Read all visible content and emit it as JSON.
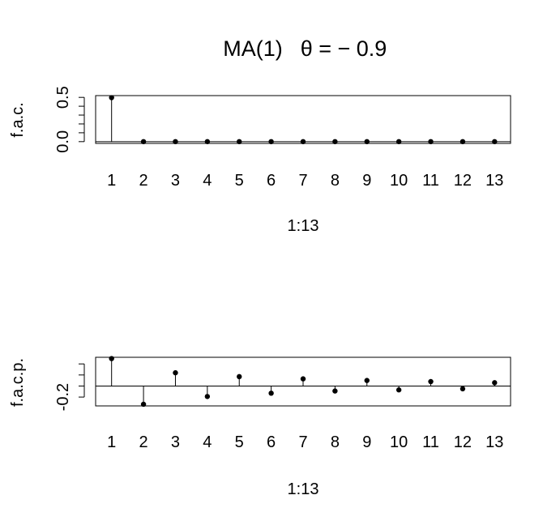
{
  "figure": {
    "title_main": "MA(1)",
    "title_param": "θ = − 0.9"
  },
  "chart_data": [
    {
      "type": "scatter",
      "style": "stem",
      "title": "MA(1)  θ = − 0.9",
      "xlabel": "1:13",
      "ylabel": "f.a.c.",
      "x": [
        1,
        2,
        3,
        4,
        5,
        6,
        7,
        8,
        9,
        10,
        11,
        12,
        13
      ],
      "y": [
        0.497,
        0,
        0,
        0,
        0,
        0,
        0,
        0,
        0,
        0,
        0,
        0,
        0
      ],
      "xlim": [
        0.5,
        13.5
      ],
      "ylim": [
        -0.02,
        0.52
      ],
      "x_ticks": [
        "1",
        "2",
        "3",
        "4",
        "5",
        "6",
        "7",
        "8",
        "9",
        "10",
        "11",
        "12",
        "13"
      ],
      "y_ticks": [
        0.0,
        0.1,
        0.2,
        0.3,
        0.4,
        0.5
      ],
      "y_tick_labels": [
        "0.0",
        "0.5"
      ],
      "y_labeled_ticks": [
        0.0,
        0.5
      ],
      "hline": 0,
      "grid": false,
      "legend": "none"
    },
    {
      "type": "scatter",
      "style": "stem",
      "xlabel": "1:13",
      "ylabel": "f.a.c.p.",
      "x": [
        1,
        2,
        3,
        4,
        5,
        6,
        7,
        8,
        9,
        10,
        11,
        12,
        13
      ],
      "y": [
        0.497,
        -0.33,
        0.24,
        -0.19,
        0.17,
        -0.13,
        0.13,
        -0.09,
        0.1,
        -0.07,
        0.08,
        -0.05,
        0.06
      ],
      "xlim": [
        0.5,
        13.5
      ],
      "ylim": [
        -0.36,
        0.52
      ],
      "x_ticks": [
        "1",
        "2",
        "3",
        "4",
        "5",
        "6",
        "7",
        "8",
        "9",
        "10",
        "11",
        "12",
        "13"
      ],
      "y_ticks": [
        -0.2,
        0.0,
        0.2,
        0.4
      ],
      "y_tick_labels": [
        "-0.2"
      ],
      "y_labeled_ticks": [
        -0.2
      ],
      "hline": 0,
      "grid": false,
      "legend": "none"
    }
  ]
}
